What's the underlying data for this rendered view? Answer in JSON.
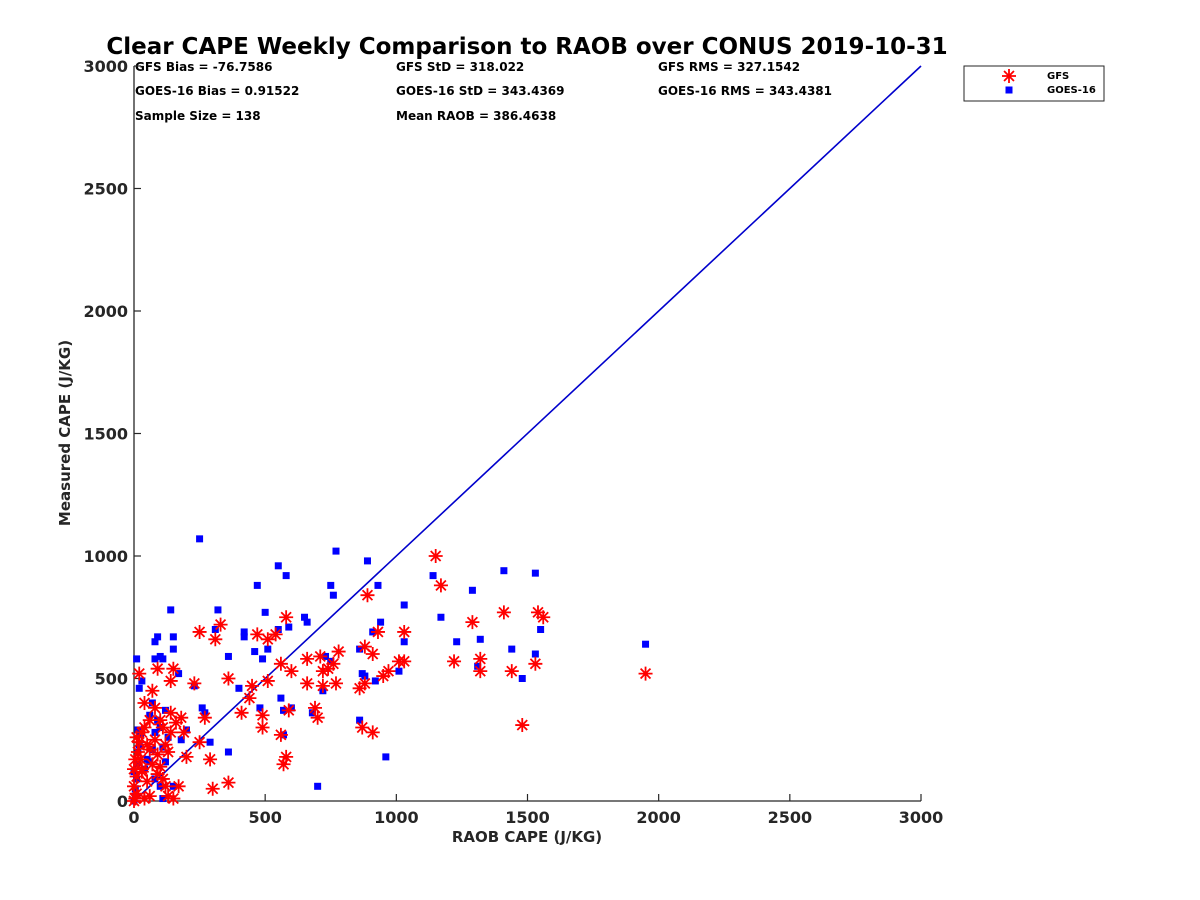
{
  "chart_data": {
    "type": "scatter",
    "title": "Clear CAPE Weekly Comparison to RAOB over CONUS 2019-10-31",
    "xlabel": "RAOB CAPE (J/KG)",
    "ylabel": "Measured CAPE (J/KG)",
    "xlim": [
      0,
      3000
    ],
    "ylim": [
      0,
      3000
    ],
    "xticks": [
      "0",
      "500",
      "1000",
      "1500",
      "2000",
      "2500",
      "3000"
    ],
    "yticks": [
      "0",
      "500",
      "1000",
      "1500",
      "2000",
      "2500",
      "3000"
    ],
    "legend_position": "top-right, outside axes",
    "stats": {
      "gfs_bias": "GFS Bias = -76.7586",
      "gfs_std": "GFS StD = 318.022",
      "gfs_rms": "GFS RMS = 327.1542",
      "goes_bias": "GOES-16 Bias = 0.91522",
      "goes_std": "GOES-16 StD = 343.4369",
      "goes_rms": "GOES-16 RMS = 343.4381",
      "sample_size": "Sample Size = 138",
      "mean_raob": "Mean RAOB = 386.4638"
    },
    "reference_line": {
      "name": "1:1 line",
      "color": "#0000cc",
      "x": [
        0,
        3000
      ],
      "y": [
        0,
        3000
      ]
    },
    "series": [
      {
        "name": "GFS",
        "marker": "asterisk",
        "color": "#ff0000",
        "points": [
          [
            0,
            0
          ],
          [
            5,
            10
          ],
          [
            10,
            30
          ],
          [
            0,
            60
          ],
          [
            10,
            100
          ],
          [
            0,
            130
          ],
          [
            5,
            170
          ],
          [
            15,
            200
          ],
          [
            25,
            170
          ],
          [
            30,
            120
          ],
          [
            10,
            260
          ],
          [
            30,
            280
          ],
          [
            40,
            300
          ],
          [
            50,
            230
          ],
          [
            60,
            210
          ],
          [
            80,
            250
          ],
          [
            90,
            190
          ],
          [
            70,
            150
          ],
          [
            100,
            140
          ],
          [
            110,
            90
          ],
          [
            120,
            60
          ],
          [
            130,
            20
          ],
          [
            150,
            10
          ],
          [
            60,
            20
          ],
          [
            40,
            10
          ],
          [
            20,
            520
          ],
          [
            40,
            400
          ],
          [
            70,
            450
          ],
          [
            90,
            540
          ],
          [
            80,
            380
          ],
          [
            100,
            330
          ],
          [
            110,
            300
          ],
          [
            120,
            230
          ],
          [
            140,
            280
          ],
          [
            150,
            540
          ],
          [
            140,
            490
          ],
          [
            140,
            360
          ],
          [
            160,
            320
          ],
          [
            180,
            340
          ],
          [
            200,
            180
          ],
          [
            190,
            280
          ],
          [
            230,
            480
          ],
          [
            250,
            240
          ],
          [
            250,
            690
          ],
          [
            270,
            340
          ],
          [
            290,
            170
          ],
          [
            310,
            660
          ],
          [
            330,
            720
          ],
          [
            360,
            500
          ],
          [
            360,
            75
          ],
          [
            410,
            360
          ],
          [
            440,
            420
          ],
          [
            450,
            470
          ],
          [
            470,
            680
          ],
          [
            490,
            350
          ],
          [
            490,
            300
          ],
          [
            510,
            660
          ],
          [
            510,
            490
          ],
          [
            540,
            680
          ],
          [
            560,
            560
          ],
          [
            560,
            270
          ],
          [
            570,
            150
          ],
          [
            580,
            180
          ],
          [
            580,
            750
          ],
          [
            590,
            370
          ],
          [
            600,
            530
          ],
          [
            660,
            580
          ],
          [
            660,
            480
          ],
          [
            690,
            380
          ],
          [
            700,
            340
          ],
          [
            710,
            590
          ],
          [
            720,
            530
          ],
          [
            720,
            470
          ],
          [
            740,
            540
          ],
          [
            760,
            560
          ],
          [
            770,
            480
          ],
          [
            780,
            610
          ],
          [
            860,
            460
          ],
          [
            870,
            300
          ],
          [
            880,
            480
          ],
          [
            880,
            630
          ],
          [
            890,
            840
          ],
          [
            910,
            600
          ],
          [
            910,
            280
          ],
          [
            930,
            690
          ],
          [
            950,
            510
          ],
          [
            970,
            530
          ],
          [
            1010,
            570
          ],
          [
            1030,
            570
          ],
          [
            1030,
            690
          ],
          [
            1150,
            1000
          ],
          [
            1170,
            880
          ],
          [
            1220,
            570
          ],
          [
            1290,
            730
          ],
          [
            1320,
            580
          ],
          [
            1320,
            530
          ],
          [
            1410,
            770
          ],
          [
            1440,
            530
          ],
          [
            1480,
            310
          ],
          [
            1530,
            560
          ],
          [
            1540,
            770
          ],
          [
            1560,
            750
          ],
          [
            1950,
            520
          ],
          [
            20,
            240
          ],
          [
            30,
            130
          ],
          [
            50,
            80
          ],
          [
            60,
            330
          ],
          [
            90,
            110
          ],
          [
            130,
            200
          ],
          [
            170,
            60
          ],
          [
            300,
            50
          ]
        ]
      },
      {
        "name": "GOES-16",
        "marker": "square",
        "color": "#0000ff",
        "points": [
          [
            0,
            0
          ],
          [
            5,
            20
          ],
          [
            5,
            50
          ],
          [
            10,
            90
          ],
          [
            0,
            120
          ],
          [
            10,
            150
          ],
          [
            15,
            200
          ],
          [
            20,
            230
          ],
          [
            25,
            270
          ],
          [
            15,
            290
          ],
          [
            40,
            130
          ],
          [
            50,
            170
          ],
          [
            60,
            160
          ],
          [
            70,
            210
          ],
          [
            80,
            280
          ],
          [
            90,
            330
          ],
          [
            100,
            300
          ],
          [
            110,
            220
          ],
          [
            120,
            160
          ],
          [
            80,
            90
          ],
          [
            100,
            60
          ],
          [
            110,
            10
          ],
          [
            150,
            60
          ],
          [
            10,
            580
          ],
          [
            20,
            460
          ],
          [
            30,
            490
          ],
          [
            60,
            350
          ],
          [
            70,
            400
          ],
          [
            80,
            580
          ],
          [
            80,
            650
          ],
          [
            90,
            670
          ],
          [
            100,
            590
          ],
          [
            110,
            580
          ],
          [
            120,
            370
          ],
          [
            130,
            260
          ],
          [
            140,
            780
          ],
          [
            150,
            670
          ],
          [
            150,
            620
          ],
          [
            170,
            520
          ],
          [
            180,
            250
          ],
          [
            200,
            290
          ],
          [
            230,
            470
          ],
          [
            250,
            1070
          ],
          [
            260,
            380
          ],
          [
            270,
            360
          ],
          [
            290,
            240
          ],
          [
            310,
            700
          ],
          [
            320,
            780
          ],
          [
            360,
            590
          ],
          [
            360,
            200
          ],
          [
            400,
            460
          ],
          [
            420,
            690
          ],
          [
            420,
            670
          ],
          [
            460,
            610
          ],
          [
            470,
            880
          ],
          [
            480,
            380
          ],
          [
            490,
            580
          ],
          [
            500,
            770
          ],
          [
            510,
            620
          ],
          [
            550,
            960
          ],
          [
            550,
            700
          ],
          [
            560,
            420
          ],
          [
            570,
            370
          ],
          [
            570,
            270
          ],
          [
            580,
            920
          ],
          [
            590,
            710
          ],
          [
            600,
            380
          ],
          [
            650,
            750
          ],
          [
            660,
            730
          ],
          [
            680,
            360
          ],
          [
            700,
            60
          ],
          [
            720,
            450
          ],
          [
            730,
            590
          ],
          [
            750,
            880
          ],
          [
            750,
            570
          ],
          [
            760,
            840
          ],
          [
            770,
            1020
          ],
          [
            860,
            620
          ],
          [
            860,
            330
          ],
          [
            870,
            520
          ],
          [
            880,
            510
          ],
          [
            890,
            980
          ],
          [
            910,
            690
          ],
          [
            920,
            490
          ],
          [
            930,
            880
          ],
          [
            940,
            730
          ],
          [
            960,
            180
          ],
          [
            1010,
            530
          ],
          [
            1030,
            650
          ],
          [
            1030,
            800
          ],
          [
            1140,
            920
          ],
          [
            1170,
            750
          ],
          [
            1230,
            650
          ],
          [
            1290,
            860
          ],
          [
            1310,
            550
          ],
          [
            1320,
            660
          ],
          [
            1410,
            940
          ],
          [
            1440,
            620
          ],
          [
            1480,
            500
          ],
          [
            1530,
            600
          ],
          [
            1530,
            930
          ],
          [
            1550,
            700
          ],
          [
            1950,
            640
          ]
        ]
      }
    ]
  }
}
